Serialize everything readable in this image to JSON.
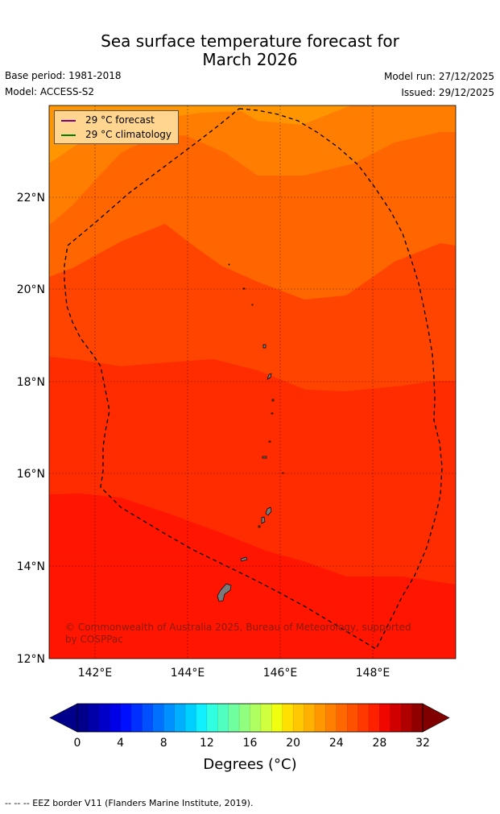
{
  "title_line1": "Sea surface temperature forecast for",
  "title_line2": "March 2026",
  "base_period": "Base period: 1981-2018",
  "model": "Model: ACCESS-S2",
  "model_run": "Model run: 27/12/2025",
  "issued": "Issued: 29/12/2025",
  "legend": {
    "forecast_label": "29 °C  forecast",
    "climatology_label": "29 °C  climatology",
    "forecast_color": "#800080",
    "climatology_color": "#008000"
  },
  "lat_labels": [
    "22°N",
    "20°N",
    "18°N",
    "16°N",
    "14°N",
    "12°N"
  ],
  "lon_labels": [
    "142°E",
    "144°E",
    "146°E",
    "148°E"
  ],
  "copyright": "© Commonwealth of Australia 2025, Bureau of Meteorology, supported by COSPPac",
  "colorbar": {
    "ticks": [
      "0",
      "4",
      "8",
      "12",
      "16",
      "20",
      "24",
      "28",
      "32"
    ],
    "label": "Degrees (°C)",
    "min": 0,
    "max": 32,
    "colors": [
      "#00008b",
      "#0000a8",
      "#0000c8",
      "#0000e8",
      "#0010ff",
      "#0030ff",
      "#0050ff",
      "#0070ff",
      "#0090ff",
      "#00b0ff",
      "#00d0ff",
      "#10f0ff",
      "#30ffe0",
      "#50ffc0",
      "#70ffa0",
      "#90ff80",
      "#b0ff60",
      "#d0ff40",
      "#f0ff10",
      "#ffe000",
      "#ffc800",
      "#ffb000",
      "#ff9800",
      "#ff8000",
      "#ff6800",
      "#ff5000",
      "#ff3800",
      "#ff2000",
      "#f00800",
      "#d00000",
      "#b00000",
      "#900000"
    ],
    "under_color": "#00008b",
    "over_color": "#800000"
  },
  "footer": "--  --  -- EEZ border V11 (Flanders Marine Institute, 2019)."
}
